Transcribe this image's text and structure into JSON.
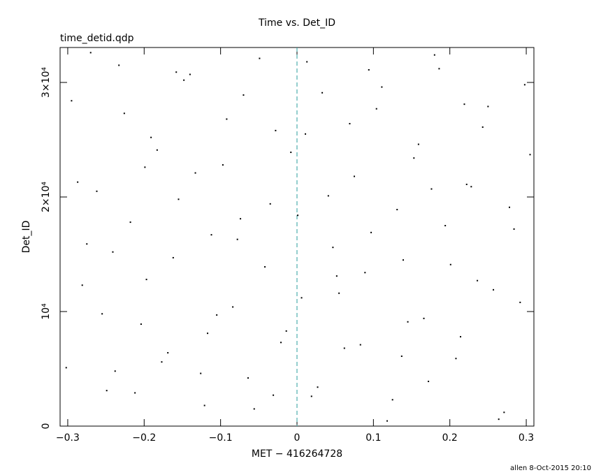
{
  "chart_data": {
    "type": "scatter",
    "title": "Time vs. Det_ID",
    "subtitle": "time_detid.qdp",
    "x_label": "MET − 416264728",
    "y_label": "Det_ID",
    "footer": "allen  8-Oct-2015 20:10",
    "color": "#000000",
    "reference_line": {
      "x": 0,
      "color": "#2a9d9d"
    },
    "xlim": [
      -0.31,
      0.31
    ],
    "ylim": [
      0,
      33050
    ],
    "xticks": [
      {
        "value": -0.3,
        "label": "−0.3"
      },
      {
        "value": -0.2,
        "label": "−0.2"
      },
      {
        "value": -0.1,
        "label": "−0.1"
      },
      0,
      0.1,
      0.2,
      0.3
    ],
    "yticks": [
      0,
      {
        "value": 10000,
        "label": "10⁴"
      },
      {
        "value": 20000,
        "label": "2×10⁴"
      },
      {
        "value": 30000,
        "label": "3×10⁴"
      }
    ],
    "x": [
      -0.295,
      -0.281,
      -0.262,
      -0.249,
      -0.233,
      -0.218,
      -0.204,
      -0.191,
      -0.177,
      -0.162,
      -0.148,
      -0.133,
      -0.121,
      -0.105,
      -0.092,
      -0.078,
      -0.064,
      -0.049,
      -0.035,
      -0.021,
      -0.008,
      0.006,
      0.019,
      0.033,
      0.047,
      0.062,
      0.075,
      0.089,
      0.104,
      0.118,
      0.131,
      0.145,
      0.159,
      0.172,
      0.186,
      0.201,
      0.214,
      0.228,
      0.243,
      0.257,
      0.271,
      0.284,
      0.298,
      -0.302,
      -0.287,
      -0.27,
      -0.255,
      -0.241,
      -0.226,
      -0.212,
      -0.197,
      -0.183,
      -0.169,
      -0.155,
      -0.14,
      -0.126,
      -0.112,
      -0.097,
      -0.084,
      -0.07,
      -0.056,
      -0.042,
      -0.028,
      -0.014,
      0.001,
      0.013,
      0.027,
      0.041,
      0.055,
      0.069,
      0.083,
      0.097,
      0.111,
      0.125,
      0.139,
      0.153,
      0.166,
      0.18,
      0.194,
      0.208,
      0.222,
      0.236,
      0.25,
      0.264,
      0.278,
      0.292,
      0.305,
      -0.275,
      -0.238,
      -0.199,
      -0.158,
      -0.117,
      -0.074,
      -0.031,
      0.011,
      0.052,
      0.094,
      0.137,
      0.176,
      0.219
    ],
    "values": [
      28400,
      12300,
      20500,
      3100,
      31500,
      17800,
      8900,
      25200,
      5600,
      14700,
      30200,
      22100,
      1800,
      9700,
      26800,
      16300,
      4200,
      32100,
      19400,
      7300,
      23900,
      11200,
      2600,
      29100,
      15600,
      6800,
      21800,
      13400,
      27700,
      450,
      18900,
      9100,
      24600,
      3900,
      31200,
      14100,
      7800,
      20900,
      26100,
      11900,
      1200,
      17200,
      29800,
      5100,
      21300,
      32600,
      9800,
      15200,
      27300,
      2900,
      12800,
      24100,
      6400,
      19800,
      30700,
      4600,
      16700,
      22800,
      10400,
      28900,
      1500,
      13900,
      25800,
      8300,
      18400,
      31800,
      3400,
      20100,
      11600,
      26400,
      7100,
      16900,
      29600,
      2300,
      14500,
      23400,
      9400,
      32400,
      17500,
      5900,
      21100,
      12700,
      27900,
      600,
      19100,
      10800,
      23700,
      15900,
      4800,
      22600,
      30900,
      8100,
      18100,
      2700,
      25500,
      13100,
      31100,
      6100,
      20700,
      28100
    ]
  }
}
